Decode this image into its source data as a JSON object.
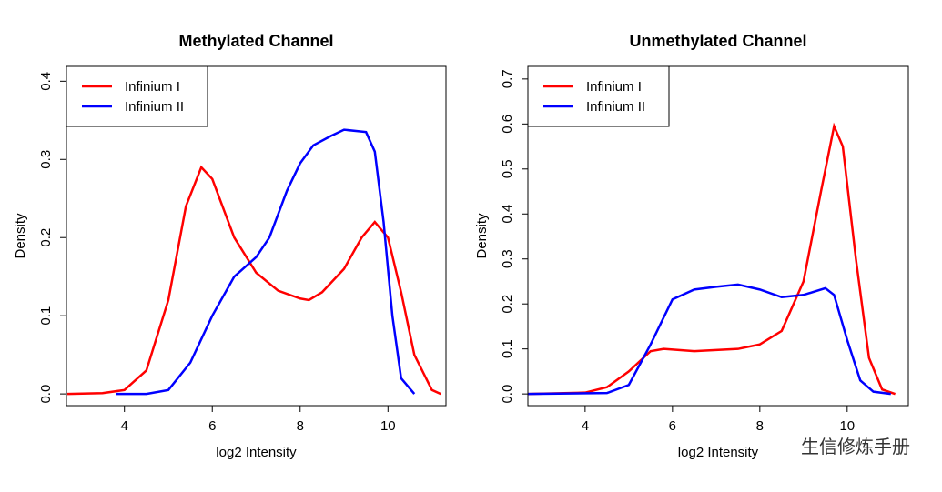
{
  "chart_data": [
    {
      "type": "line",
      "title": "Methylated Channel",
      "x_label": "log2 Intensity",
      "y_label": "Density",
      "xlim": [
        2.68,
        11.32
      ],
      "ylim": [
        -0.015,
        0.419
      ],
      "xticks": [
        4,
        6,
        8,
        10
      ],
      "yticks": [
        {
          "value": 0,
          "label": "0.0"
        },
        0.1,
        0.2,
        0.3,
        0.4
      ],
      "legend": "top-left",
      "series": [
        {
          "name": "Infinium I",
          "color": "#ff0000",
          "x": [
            2.7,
            3.5,
            4,
            4.5,
            5,
            5.4,
            5.75,
            6,
            6.5,
            7,
            7.5,
            8,
            8.2,
            8.5,
            9,
            9.4,
            9.7,
            10,
            10.3,
            10.6,
            11,
            11.2
          ],
          "values": [
            0,
            0.001,
            0.005,
            0.03,
            0.12,
            0.24,
            0.29,
            0.275,
            0.2,
            0.155,
            0.132,
            0.122,
            0.12,
            0.13,
            0.16,
            0.2,
            0.22,
            0.2,
            0.13,
            0.05,
            0.005,
            0
          ]
        },
        {
          "name": "Infinium II",
          "color": "#0000ff",
          "x": [
            3.8,
            4.5,
            5,
            5.5,
            6,
            6.5,
            7,
            7.3,
            7.7,
            8,
            8.3,
            8.7,
            9,
            9.5,
            9.7,
            9.9,
            10.1,
            10.3,
            10.6
          ],
          "values": [
            0,
            0,
            0.005,
            0.04,
            0.1,
            0.15,
            0.175,
            0.2,
            0.26,
            0.295,
            0.318,
            0.33,
            0.338,
            0.335,
            0.31,
            0.22,
            0.1,
            0.02,
            0
          ]
        }
      ]
    },
    {
      "type": "line",
      "title": "Unmethylated Channel",
      "x_label": "log2 Intensity",
      "y_label": "Density",
      "xlim": [
        2.69,
        11.4
      ],
      "ylim": [
        -0.026,
        0.728
      ],
      "xticks": [
        4,
        6,
        8,
        10
      ],
      "yticks": [
        {
          "value": 0,
          "label": "0.0"
        },
        0.1,
        0.2,
        0.3,
        0.4,
        0.5,
        0.6,
        0.7
      ],
      "legend": "top-left",
      "series": [
        {
          "name": "Infinium I",
          "color": "#ff0000",
          "x": [
            2.7,
            4,
            4.5,
            5,
            5.5,
            5.8,
            6.5,
            7.5,
            8,
            8.5,
            9,
            9.4,
            9.7,
            9.9,
            10.2,
            10.5,
            10.8,
            11.1
          ],
          "values": [
            0,
            0.003,
            0.015,
            0.05,
            0.095,
            0.1,
            0.095,
            0.1,
            0.11,
            0.14,
            0.25,
            0.45,
            0.595,
            0.55,
            0.3,
            0.08,
            0.01,
            0
          ]
        },
        {
          "name": "Infinium II",
          "color": "#0000ff",
          "x": [
            2.7,
            4.5,
            5,
            5.5,
            6,
            6.5,
            7,
            7.5,
            8,
            8.5,
            9,
            9.5,
            9.7,
            10,
            10.3,
            10.6,
            11
          ],
          "values": [
            0,
            0.002,
            0.02,
            0.11,
            0.21,
            0.232,
            0.238,
            0.243,
            0.232,
            0.215,
            0.22,
            0.235,
            0.22,
            0.12,
            0.03,
            0.005,
            0
          ]
        }
      ]
    }
  ],
  "watermark": "生信修炼手册"
}
